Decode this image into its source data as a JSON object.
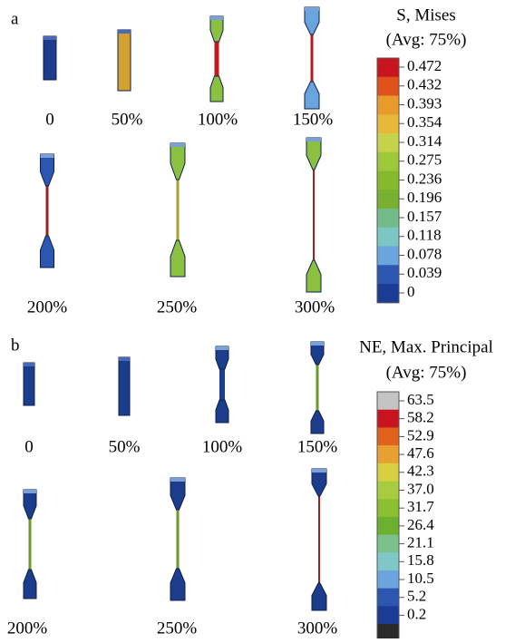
{
  "panels": [
    {
      "label": "a",
      "legend": {
        "title": [
          "S, Mises",
          "(Avg: 75%)"
        ],
        "labels": [
          "0.472",
          "0.432",
          "0.393",
          "0.354",
          "0.314",
          "0.275",
          "0.236",
          "0.196",
          "0.157",
          "0.118",
          "0.078",
          "0.039",
          "0"
        ]
      },
      "specimens": [
        "0",
        "50%",
        "100%",
        "150%",
        "200%",
        "250%",
        "300%"
      ]
    },
    {
      "label": "b",
      "legend": {
        "title": [
          "NE, Max. Principal",
          "(Avg: 75%)"
        ],
        "labels": [
          "63.5",
          "58.2",
          "52.9",
          "47.6",
          "42.3",
          "37.0",
          "31.7",
          "26.4",
          "21.1",
          "15.8",
          "10.5",
          "5.2",
          "0.2"
        ]
      },
      "specimens": [
        "0",
        "50%",
        "100%",
        "150%",
        "200%",
        "250%",
        "300%"
      ]
    }
  ]
}
